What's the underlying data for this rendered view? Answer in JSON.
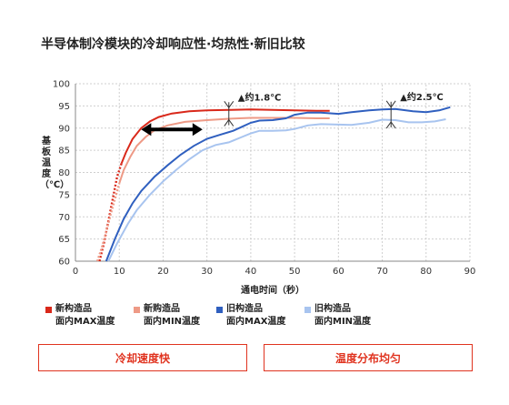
{
  "chart_data": {
    "type": "line",
    "title": "半导体制冷模块的冷却响应性·均热性·新旧比较",
    "xlabel": "通电时间（秒）",
    "ylabel": "基板温度（℃）",
    "xlim": [
      0,
      90
    ],
    "ylim": [
      60,
      100
    ],
    "xticks": [
      "0",
      "10",
      "20",
      "30",
      "40",
      "50",
      "60",
      "70",
      "80",
      "90"
    ],
    "yticks": [
      "60",
      "65",
      "70",
      "75",
      "80",
      "85",
      "90",
      "95",
      "100"
    ],
    "grid": true,
    "series": [
      {
        "name": "新构造品 面内MAX温度",
        "color": "#d9281a",
        "style": "dashed-start",
        "points": [
          [
            5.5,
            60
          ],
          [
            6.5,
            64
          ],
          [
            7.5,
            69
          ],
          [
            8.5,
            74
          ],
          [
            9.5,
            79
          ],
          [
            10.5,
            82
          ],
          [
            11.5,
            84.5
          ],
          [
            13,
            87.5
          ],
          [
            15,
            90
          ],
          [
            17,
            91.5
          ],
          [
            19,
            92.5
          ],
          [
            22,
            93.3
          ],
          [
            26,
            93.8
          ],
          [
            30,
            94
          ],
          [
            35,
            94.1
          ],
          [
            40,
            94.2
          ],
          [
            45,
            94.1
          ],
          [
            50,
            94
          ],
          [
            55,
            93.9
          ],
          [
            58,
            93.9
          ]
        ]
      },
      {
        "name": "新购造品 面内MIN温度",
        "color": "#ee9a86",
        "style": "dashed-start",
        "points": [
          [
            5,
            60
          ],
          [
            6,
            63
          ],
          [
            7,
            66.5
          ],
          [
            8,
            70.5
          ],
          [
            9,
            74
          ],
          [
            10,
            77.5
          ],
          [
            11,
            80.5
          ],
          [
            12.5,
            83.5
          ],
          [
            14,
            86
          ],
          [
            16,
            88
          ],
          [
            18,
            89.5
          ],
          [
            21,
            90.6
          ],
          [
            25,
            91.4
          ],
          [
            30,
            91.8
          ],
          [
            35,
            92.1
          ],
          [
            40,
            92.3
          ],
          [
            45,
            92.3
          ],
          [
            50,
            92.3
          ],
          [
            55,
            92.2
          ],
          [
            58,
            92.2
          ]
        ]
      },
      {
        "name": "旧构造品 面内MAX温度",
        "color": "#2f5fbf",
        "style": "solid",
        "points": [
          [
            7,
            60
          ],
          [
            9,
            65
          ],
          [
            11,
            69.5
          ],
          [
            13,
            73
          ],
          [
            15,
            75.8
          ],
          [
            18,
            79
          ],
          [
            21,
            81.6
          ],
          [
            24,
            84
          ],
          [
            27,
            86
          ],
          [
            30,
            87.6
          ],
          [
            33,
            88.5
          ],
          [
            36,
            89.4
          ],
          [
            38,
            90.3
          ],
          [
            40,
            91.2
          ],
          [
            42,
            91.7
          ],
          [
            45,
            91.8
          ],
          [
            48,
            92.2
          ],
          [
            50,
            93
          ],
          [
            53,
            93.5
          ],
          [
            56,
            93.5
          ],
          [
            60,
            93.2
          ],
          [
            63,
            93.6
          ],
          [
            67,
            94
          ],
          [
            70,
            94.2
          ],
          [
            73,
            94.3
          ],
          [
            77,
            93.8
          ],
          [
            80,
            93.6
          ],
          [
            83,
            94
          ],
          [
            85.5,
            94.7
          ]
        ]
      },
      {
        "name": "旧构造品 面内MIN温度",
        "color": "#a8c4ef",
        "style": "solid",
        "points": [
          [
            7.5,
            60
          ],
          [
            9.5,
            64
          ],
          [
            12,
            68.5
          ],
          [
            14,
            71.5
          ],
          [
            17,
            75
          ],
          [
            20,
            78
          ],
          [
            23,
            80.6
          ],
          [
            26,
            83
          ],
          [
            29,
            85
          ],
          [
            32,
            86.2
          ],
          [
            35,
            86.8
          ],
          [
            38,
            88
          ],
          [
            40,
            88.8
          ],
          [
            42,
            89.4
          ],
          [
            45,
            89.4
          ],
          [
            48,
            89.5
          ],
          [
            50,
            89.8
          ],
          [
            53,
            90.6
          ],
          [
            56,
            90.9
          ],
          [
            60,
            90.8
          ],
          [
            63,
            90.7
          ],
          [
            67,
            91.2
          ],
          [
            70,
            91.9
          ],
          [
            73,
            91.8
          ],
          [
            76,
            91.3
          ],
          [
            79,
            91.3
          ],
          [
            82,
            91.5
          ],
          [
            84.5,
            92
          ]
        ]
      }
    ],
    "annotations": [
      {
        "text": "▲约1.8℃",
        "x": 35,
        "y_top": 94.2,
        "y_bottom": 92.3
      },
      {
        "text": "▲约2.5℃",
        "x": 72,
        "y_top": 94.3,
        "y_bottom": 91.8
      }
    ],
    "arrow": {
      "x_from": 15,
      "x_to": 29,
      "y": 89.7
    }
  },
  "legend": [
    {
      "line1": "新构造品",
      "line2": "面内MAX温度",
      "color": "#d9281a"
    },
    {
      "line1": "新购造品",
      "line2": "面内MIN温度",
      "color": "#ee9a86"
    },
    {
      "line1": "旧构造品",
      "line2": "面内MAX温度",
      "color": "#2f5fbf"
    },
    {
      "line1": "旧构造品",
      "line2": "面内MIN温度",
      "color": "#a8c4ef"
    }
  ],
  "callouts": {
    "left": "冷却速度快",
    "right": "温度分布均匀"
  }
}
